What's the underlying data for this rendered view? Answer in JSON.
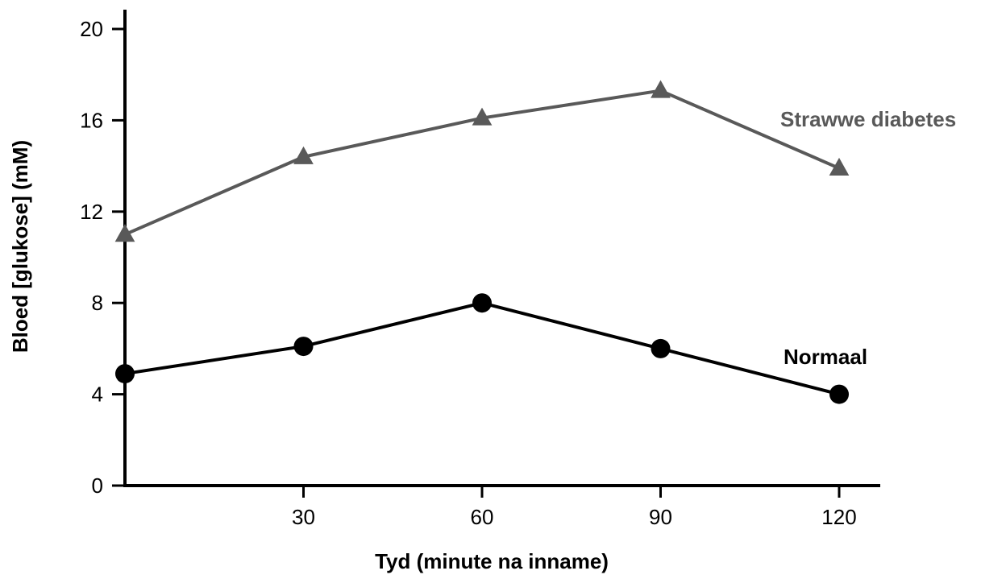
{
  "chart_data": {
    "type": "line",
    "xlabel": "Tyd (minute na inname)",
    "ylabel": "Bloed [glukose] (mM)",
    "xlim": [
      0,
      125
    ],
    "ylim": [
      0,
      20
    ],
    "xticks": [
      30,
      60,
      90,
      120
    ],
    "yticks": [
      0,
      4,
      8,
      12,
      16,
      20
    ],
    "grid": false,
    "series": [
      {
        "name": "Strawwe diabetes",
        "marker": "triangle",
        "color": "#595959",
        "x": [
          0,
          30,
          60,
          90,
          120
        ],
        "y": [
          11,
          14.4,
          16.1,
          17.3,
          13.9
        ]
      },
      {
        "name": "Normaal",
        "marker": "circle",
        "color": "#000000",
        "x": [
          0,
          30,
          60,
          90,
          120
        ],
        "y": [
          4.9,
          6.1,
          8.0,
          6.0,
          4.0
        ]
      }
    ]
  }
}
